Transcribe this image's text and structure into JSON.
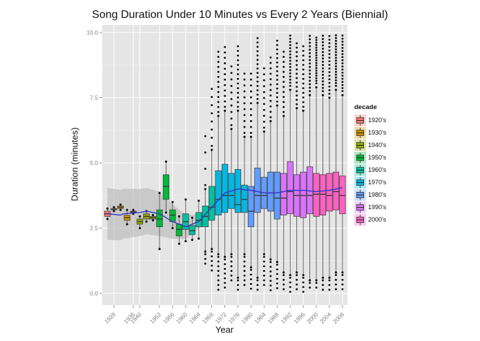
{
  "chart_data": {
    "type": "boxplot",
    "title": "Song Duration Under 10 Minutes vs Every 2 Years (Biennial)",
    "xlabel": "Year",
    "ylabel": "Duration (minutes)",
    "ylim": [
      -0.5,
      10.4
    ],
    "y_ticks": [
      "0.0",
      "2.5",
      "5.0",
      "7.5",
      "10.0"
    ],
    "y_tick_values": [
      0,
      2.5,
      5,
      7.5,
      10
    ],
    "x_tick_labels": [
      "1928",
      "1936",
      "1940",
      "1952",
      "1956",
      "1960",
      "1964",
      "1968",
      "1972",
      "1976",
      "1980",
      "1984",
      "1988",
      "1992",
      "1996",
      "2000",
      "2004",
      "2008"
    ],
    "grid": true,
    "legend": {
      "title": "decade",
      "position": "right",
      "entries": [
        "1920's",
        "1930's",
        "1940's",
        "1950's",
        "1960's",
        "1970's",
        "1980's",
        "1990's",
        "2000's"
      ],
      "colors": [
        "#F8766D",
        "#D39200",
        "#93AA00",
        "#00BA38",
        "#00C19F",
        "#00B9E3",
        "#619CFF",
        "#DB72FB",
        "#FF61C3"
      ]
    },
    "smooth": {
      "method": "loess",
      "color": "#3333CC",
      "points": [
        [
          1926,
          3.05
        ],
        [
          1930,
          3.0
        ],
        [
          1934,
          3.05
        ],
        [
          1940,
          3.1
        ],
        [
          1946,
          3.15
        ],
        [
          1952,
          3.05
        ],
        [
          1956,
          2.75
        ],
        [
          1960,
          2.55
        ],
        [
          1964,
          2.75
        ],
        [
          1968,
          3.3
        ],
        [
          1972,
          3.85
        ],
        [
          1976,
          4.0
        ],
        [
          1980,
          3.95
        ],
        [
          1984,
          3.85
        ],
        [
          1988,
          3.85
        ],
        [
          1992,
          3.95
        ],
        [
          1996,
          3.95
        ],
        [
          2000,
          3.9
        ],
        [
          2004,
          3.95
        ],
        [
          2008,
          4.05
        ]
      ]
    },
    "series": [
      {
        "year": 1926,
        "decade": "1920's",
        "q1": 2.95,
        "median": 3.05,
        "q3": 3.15,
        "low": 2.85,
        "high": 3.25
      },
      {
        "year": 1928,
        "decade": "1920's",
        "q1": 3.2,
        "median": 3.22,
        "q3": 3.25,
        "low": 3.15,
        "high": 3.3
      },
      {
        "year": 1930,
        "decade": "1930's",
        "q1": 3.25,
        "median": 3.3,
        "q3": 3.35,
        "low": 3.2,
        "high": 3.4
      },
      {
        "year": 1932,
        "decade": "1930's",
        "q1": 2.8,
        "median": 2.9,
        "q3": 3.0,
        "low": 2.65,
        "high": 3.2
      },
      {
        "year": 1936,
        "decade": "1930's",
        "q1": 3.1,
        "median": 3.12,
        "q3": 3.15,
        "low": 3.05,
        "high": 3.2
      },
      {
        "year": 1940,
        "decade": "1940's",
        "q1": 2.65,
        "median": 2.75,
        "q3": 2.85,
        "low": 2.5,
        "high": 2.95
      },
      {
        "year": 1946,
        "decade": "1940's",
        "q1": 2.85,
        "median": 2.95,
        "q3": 3.05,
        "low": 2.75,
        "high": 3.15
      },
      {
        "year": 1950,
        "decade": "1940's",
        "q1": 2.85,
        "median": 2.9,
        "q3": 2.95,
        "low": 2.8,
        "high": 3.0
      },
      {
        "year": 1952,
        "decade": "1950's",
        "q1": 2.55,
        "median": 2.85,
        "q3": 3.2,
        "low": 1.7,
        "high": 3.85
      },
      {
        "year": 1954,
        "decade": "1950's",
        "q1": 3.6,
        "median": 4.1,
        "q3": 4.55,
        "low": 3.1,
        "high": 5.05
      },
      {
        "year": 1956,
        "decade": "1950's",
        "q1": 2.75,
        "median": 3.0,
        "q3": 3.2,
        "low": 2.5,
        "high": 3.5
      },
      {
        "year": 1958,
        "decade": "1950's",
        "q1": 2.2,
        "median": 2.45,
        "q3": 2.65,
        "low": 1.9,
        "high": 2.95
      },
      {
        "year": 1960,
        "decade": "1960's",
        "q1": 2.45,
        "median": 2.75,
        "q3": 3.05,
        "low": 2.0,
        "high": 3.6
      },
      {
        "year": 1962,
        "decade": "1960's",
        "q1": 2.25,
        "median": 2.4,
        "q3": 2.6,
        "low": 2.05,
        "high": 2.9
      },
      {
        "year": 1964,
        "decade": "1960's",
        "q1": 2.55,
        "median": 2.8,
        "q3": 3.1,
        "low": 2.1,
        "high": 3.55
      },
      {
        "year": 1966,
        "decade": "1960's",
        "q1": 2.55,
        "median": 2.95,
        "q3": 3.35,
        "low": 1.6,
        "high": 4.0
      },
      {
        "year": 1968,
        "decade": "1960's",
        "q1": 2.8,
        "median": 3.3,
        "q3": 4.1,
        "low": 1.7,
        "high": 5.5
      },
      {
        "year": 1970,
        "decade": "1970's",
        "q1": 3.0,
        "median": 3.6,
        "q3": 4.7,
        "low": 1.5,
        "high": 6.8
      },
      {
        "year": 1972,
        "decade": "1970's",
        "q1": 3.1,
        "median": 3.75,
        "q3": 4.95,
        "low": 1.4,
        "high": 7.0
      },
      {
        "year": 1974,
        "decade": "1970's",
        "q1": 3.25,
        "median": 3.75,
        "q3": 4.6,
        "low": 1.5,
        "high": 6.3
      },
      {
        "year": 1976,
        "decade": "1970's",
        "q1": 3.1,
        "median": 3.4,
        "q3": 4.75,
        "low": 0.6,
        "high": 7.0
      },
      {
        "year": 1978,
        "decade": "1970's",
        "q1": 3.1,
        "median": 3.6,
        "q3": 4.15,
        "low": 1.5,
        "high": 6.0
      },
      {
        "year": 1980,
        "decade": "1980's",
        "q1": 2.55,
        "median": 3.15,
        "q3": 4.1,
        "low": 1.0,
        "high": 6.0
      },
      {
        "year": 1982,
        "decade": "1980's",
        "q1": 3.1,
        "median": 3.75,
        "q3": 4.8,
        "low": 0.6,
        "high": 7.3
      },
      {
        "year": 1984,
        "decade": "1980's",
        "q1": 3.25,
        "median": 3.75,
        "q3": 4.45,
        "low": 1.5,
        "high": 6.2
      },
      {
        "year": 1986,
        "decade": "1980's",
        "q1": 3.15,
        "median": 3.85,
        "q3": 4.65,
        "low": 1.3,
        "high": 6.6
      },
      {
        "year": 1988,
        "decade": "1980's",
        "q1": 2.85,
        "median": 3.65,
        "q3": 4.65,
        "low": 1.2,
        "high": 7.2
      },
      {
        "year": 1990,
        "decade": "1990's",
        "q1": 3.0,
        "median": 3.65,
        "q3": 4.6,
        "low": 0.8,
        "high": 6.8
      },
      {
        "year": 1992,
        "decade": "1990's",
        "q1": 3.05,
        "median": 3.9,
        "q3": 5.05,
        "low": 0.7,
        "high": 7.8
      },
      {
        "year": 1994,
        "decade": "1990's",
        "q1": 2.95,
        "median": 3.75,
        "q3": 4.55,
        "low": 0.8,
        "high": 7.1
      },
      {
        "year": 1996,
        "decade": "1990's",
        "q1": 2.9,
        "median": 3.75,
        "q3": 4.65,
        "low": 0.7,
        "high": 7.0
      },
      {
        "year": 1998,
        "decade": "1990's",
        "q1": 3.05,
        "median": 3.75,
        "q3": 4.85,
        "low": 0.5,
        "high": 7.6
      },
      {
        "year": 2000,
        "decade": "2000's",
        "q1": 2.95,
        "median": 3.8,
        "q3": 4.6,
        "low": 0.5,
        "high": 7.9
      },
      {
        "year": 2002,
        "decade": "2000's",
        "q1": 3.0,
        "median": 3.8,
        "q3": 4.55,
        "low": 0.6,
        "high": 7.6
      },
      {
        "year": 2004,
        "decade": "2000's",
        "q1": 3.15,
        "median": 3.75,
        "q3": 4.6,
        "low": 0.6,
        "high": 7.5
      },
      {
        "year": 2006,
        "decade": "2000's",
        "q1": 3.2,
        "median": 3.9,
        "q3": 4.65,
        "low": 0.8,
        "high": 7.8
      },
      {
        "year": 2008,
        "decade": "2000's",
        "q1": 3.05,
        "median": 3.75,
        "q3": 4.5,
        "low": 0.8,
        "high": 7.6
      }
    ]
  }
}
